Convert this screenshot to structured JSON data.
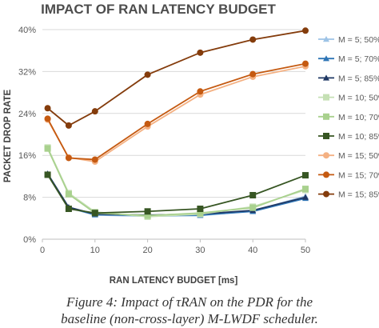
{
  "chart_data": {
    "type": "line",
    "title": "IMPACT OF RAN LATENCY BUDGET",
    "xlabel": "RAN LATENCY BUDGET [ms]",
    "ylabel": "PACKET DROP RATE",
    "x": [
      1,
      5,
      10,
      20,
      30,
      40,
      50
    ],
    "xlim": [
      0,
      50
    ],
    "ylim": [
      0,
      40
    ],
    "x_ticks": [
      "0",
      "10",
      "20",
      "30",
      "40",
      "50"
    ],
    "y_ticks": [
      "0%",
      "8%",
      "16%",
      "24%",
      "32%",
      "40%"
    ],
    "grid": "horizontal",
    "legend_position": "right",
    "series": [
      {
        "name": "M = 5; 50%",
        "color": "#9dc3e6",
        "marker": "triangle",
        "values": [
          12.5,
          6.0,
          4.6,
          4.4,
          4.5,
          5.4,
          8.2
        ]
      },
      {
        "name": "M = 5; 70%",
        "color": "#2e75b6",
        "marker": "triangle",
        "values": [
          12.4,
          6.0,
          4.7,
          4.5,
          4.6,
          5.3,
          7.8
        ]
      },
      {
        "name": "M = 5; 85%",
        "color": "#1f3864",
        "marker": "triangle",
        "values": [
          12.5,
          6.1,
          4.8,
          4.6,
          4.8,
          5.5,
          8.0
        ]
      },
      {
        "name": "M = 10; 50%",
        "color": "#c5e0b4",
        "marker": "square",
        "values": [
          17.5,
          8.8,
          5.2,
          4.3,
          4.8,
          6.2,
          9.4
        ]
      },
      {
        "name": "M = 10; 70%",
        "color": "#a9d18e",
        "marker": "square",
        "values": [
          17.3,
          8.6,
          5.0,
          4.5,
          5.0,
          6.0,
          9.6
        ]
      },
      {
        "name": "M = 10; 85%",
        "color": "#375623",
        "marker": "square",
        "values": [
          12.3,
          5.8,
          5.0,
          5.3,
          5.8,
          8.4,
          12.2
        ]
      },
      {
        "name": "M = 15; 50%",
        "color": "#f4b183",
        "marker": "circle",
        "values": [
          22.8,
          15.6,
          14.8,
          21.5,
          27.6,
          31.0,
          33.0
        ]
      },
      {
        "name": "M = 15; 70%",
        "color": "#c55a11",
        "marker": "circle",
        "values": [
          23.0,
          15.5,
          15.2,
          22.0,
          28.2,
          31.5,
          33.5
        ]
      },
      {
        "name": "M = 15; 85%",
        "color": "#843c0c",
        "marker": "circle",
        "values": [
          25.0,
          21.7,
          24.4,
          31.4,
          35.6,
          38.1,
          39.8
        ]
      }
    ]
  },
  "caption": {
    "line1": "Figure 4: Impact of τRAN on the PDR for the",
    "line2": "baseline (non-cross-layer) M-LWDF scheduler."
  }
}
